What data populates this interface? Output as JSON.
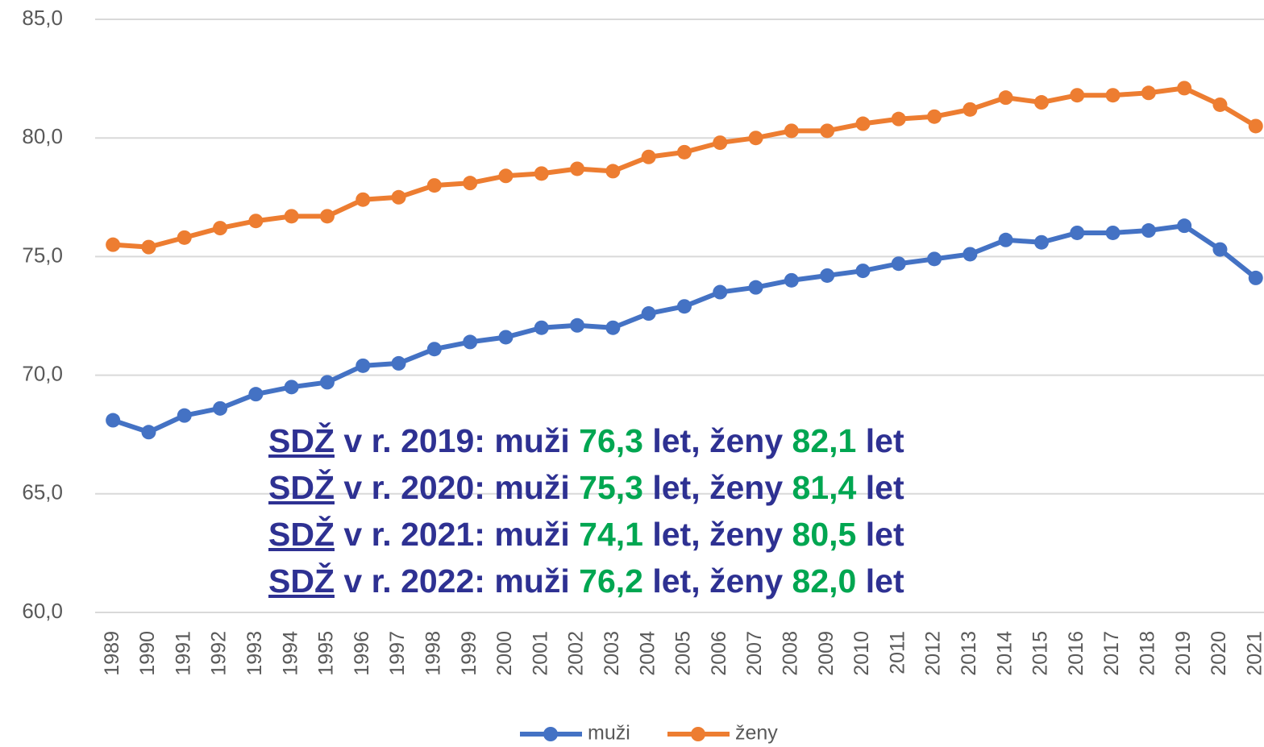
{
  "chart_data": {
    "type": "line",
    "categories": [
      "1989",
      "1990",
      "1991",
      "1992",
      "1993",
      "1994",
      "1995",
      "1996",
      "1997",
      "1998",
      "1999",
      "2000",
      "2001",
      "2002",
      "2003",
      "2004",
      "2005",
      "2006",
      "2007",
      "2008",
      "2009",
      "2010",
      "2011",
      "2012",
      "2013",
      "2014",
      "2015",
      "2016",
      "2017",
      "2018",
      "2019",
      "2020",
      "2021"
    ],
    "series": [
      {
        "name": "muži",
        "color": "#4472c4",
        "values": [
          68.1,
          67.6,
          68.3,
          68.6,
          69.2,
          69.5,
          69.7,
          70.4,
          70.5,
          71.1,
          71.4,
          71.6,
          72.0,
          72.1,
          72.0,
          72.6,
          72.9,
          73.5,
          73.7,
          74.0,
          74.2,
          74.4,
          74.7,
          74.9,
          75.1,
          75.7,
          75.6,
          76.0,
          76.0,
          76.1,
          76.3,
          75.3,
          74.1
        ]
      },
      {
        "name": "ženy",
        "color": "#ed7d31",
        "values": [
          75.5,
          75.4,
          75.8,
          76.2,
          76.5,
          76.7,
          76.7,
          77.4,
          77.5,
          78.0,
          78.1,
          78.4,
          78.5,
          78.7,
          78.6,
          79.2,
          79.4,
          79.8,
          80.0,
          80.3,
          80.3,
          80.6,
          80.8,
          80.9,
          81.2,
          81.7,
          81.5,
          81.8,
          81.8,
          81.9,
          82.1,
          81.4,
          80.5
        ]
      }
    ],
    "ylim": [
      60,
      85
    ],
    "yticks": [
      {
        "value": 60,
        "label": "60,0"
      },
      {
        "value": 65,
        "label": "65,0"
      },
      {
        "value": 70,
        "label": "70,0"
      },
      {
        "value": 75,
        "label": "75,0"
      },
      {
        "value": 80,
        "label": "80,0"
      },
      {
        "value": 85,
        "label": "85,0"
      }
    ],
    "grid": true,
    "legend": "bottom",
    "annotations": [
      {
        "abbr": "SDŽ",
        "text": "v r. 2019: muži",
        "men": "76,3",
        "mid": "let, ženy",
        "women": "82,1",
        "unit": "let"
      },
      {
        "abbr": "SDŽ",
        "text": "v r. 2020: muži",
        "men": "75,3",
        "mid": "let, ženy",
        "women": "81,4",
        "unit": "let"
      },
      {
        "abbr": "SDŽ",
        "text": "v r. 2021: muži",
        "men": "74,1",
        "mid": "let, ženy",
        "women": "80,5",
        "unit": "let"
      },
      {
        "abbr": "SDŽ",
        "text": "v r. 2022: muži",
        "men": "76,2",
        "mid": "let, ženy",
        "women": "82,0",
        "unit": "let"
      }
    ]
  }
}
